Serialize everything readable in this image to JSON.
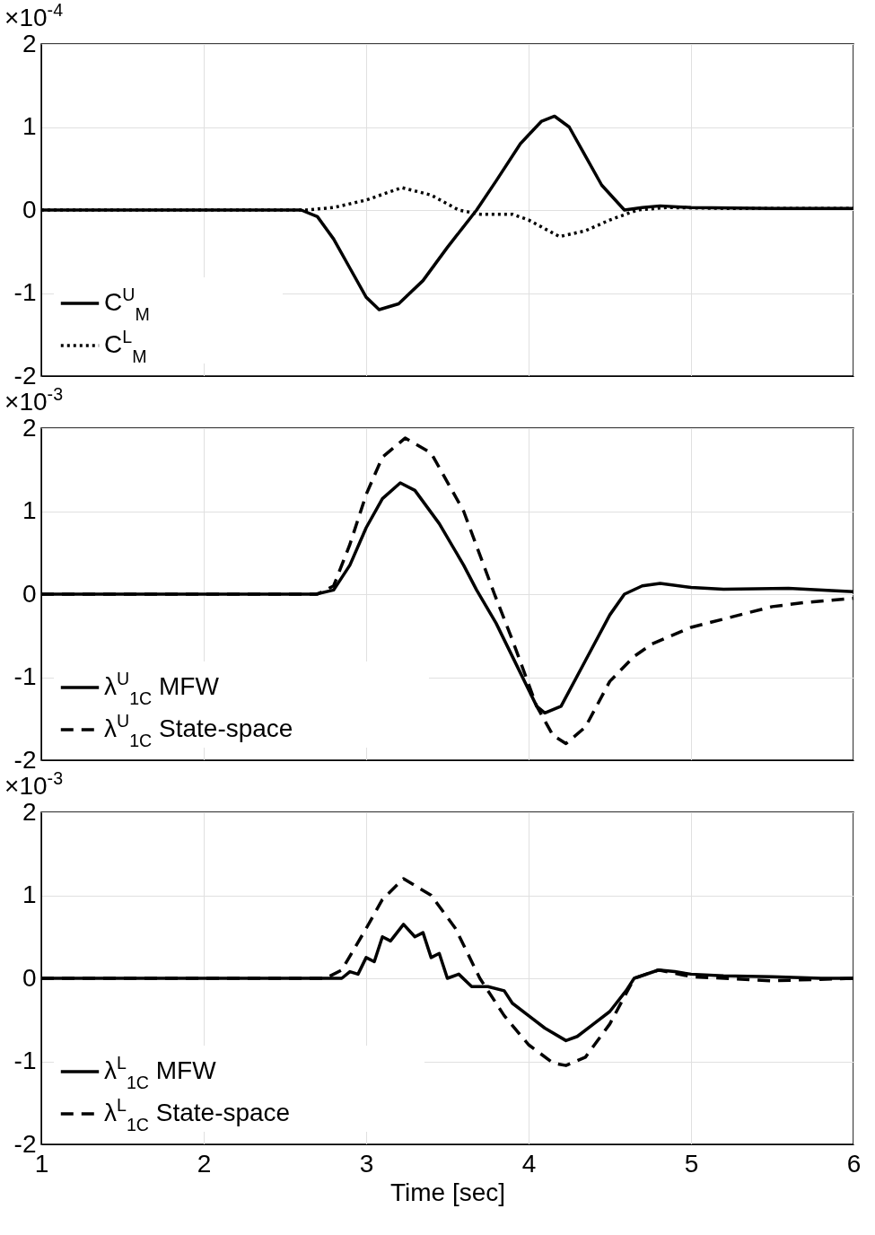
{
  "chart_data": [
    {
      "type": "line",
      "annotations": [
        "×10$^{-4}$"
      ],
      "xlim": [
        1,
        6
      ],
      "xticks": [
        1,
        2,
        3,
        4,
        5,
        6
      ],
      "ylim": [
        -2,
        2
      ],
      "yticks": [
        -2,
        -1,
        0,
        1,
        2
      ],
      "grid": true,
      "legend": "bottom left",
      "tick_labels": "y",
      "series": [
        {
          "name": "C$^{U}$$_{M}$",
          "color": "#000000",
          "line_style": "solid",
          "x": [
            1,
            2.6,
            2.7,
            2.8,
            2.9,
            3.0,
            3.08,
            3.2,
            3.35,
            3.5,
            3.68,
            3.8,
            3.95,
            4.08,
            4.16,
            4.25,
            4.35,
            4.45,
            4.59,
            4.7,
            4.81,
            5.0,
            5.5,
            6
          ],
          "values": [
            0,
            0,
            -0.08,
            -0.35,
            -0.7,
            -1.05,
            -1.2,
            -1.13,
            -0.85,
            -0.45,
            0,
            0.35,
            0.8,
            1.07,
            1.13,
            1.0,
            0.65,
            0.3,
            0,
            0.03,
            0.05,
            0.03,
            0.02,
            0.02
          ]
        },
        {
          "name": "C$^{L}$$_{M}$",
          "color": "#000000",
          "line_style": "dotted",
          "x": [
            1,
            2.63,
            2.8,
            3.0,
            3.22,
            3.4,
            3.57,
            3.7,
            3.9,
            4.0,
            4.19,
            4.35,
            4.5,
            4.67,
            4.85,
            5.2,
            6
          ],
          "values": [
            0,
            0,
            0.03,
            0.12,
            0.27,
            0.18,
            0,
            -0.05,
            -0.05,
            -0.12,
            -0.32,
            -0.25,
            -0.12,
            0,
            0.03,
            0.02,
            0.02
          ]
        }
      ]
    },
    {
      "type": "line",
      "annotations": [
        "×10$^{-3}$"
      ],
      "xlim": [
        1,
        6
      ],
      "xticks": [
        1,
        2,
        3,
        4,
        5,
        6
      ],
      "ylim": [
        -2,
        2
      ],
      "yticks": [
        -2,
        -1,
        0,
        1,
        2
      ],
      "grid": true,
      "legend": "bottom left",
      "tick_labels": "y",
      "series": [
        {
          "name": "λ$^{U}$$_{1C}$ MFW",
          "color": "#000000",
          "line_style": "solid",
          "x": [
            1,
            2.69,
            2.8,
            2.9,
            3.0,
            3.1,
            3.21,
            3.3,
            3.45,
            3.6,
            3.68,
            3.8,
            3.95,
            4.05,
            4.1,
            4.2,
            4.35,
            4.5,
            4.59,
            4.7,
            4.81,
            5.0,
            5.2,
            5.6,
            6
          ],
          "values": [
            0,
            0,
            0.05,
            0.35,
            0.8,
            1.15,
            1.34,
            1.25,
            0.85,
            0.35,
            0.05,
            -0.35,
            -0.95,
            -1.35,
            -1.43,
            -1.35,
            -0.8,
            -0.25,
            0,
            0.1,
            0.13,
            0.08,
            0.06,
            0.07,
            0.03
          ]
        },
        {
          "name": "λ$^{U}$$_{1C}$ State-space",
          "color": "#000000",
          "line_style": "dashed",
          "x": [
            1,
            2.7,
            2.8,
            2.9,
            3.0,
            3.1,
            3.24,
            3.4,
            3.6,
            3.79,
            3.9,
            4.05,
            4.15,
            4.23,
            4.35,
            4.5,
            4.65,
            4.76,
            5.0,
            5.2,
            5.5,
            5.7,
            6
          ],
          "values": [
            0,
            0,
            0.1,
            0.6,
            1.2,
            1.65,
            1.88,
            1.7,
            1.0,
            0,
            -0.55,
            -1.35,
            -1.7,
            -1.8,
            -1.6,
            -1.05,
            -0.75,
            -0.6,
            -0.4,
            -0.3,
            -0.15,
            -0.1,
            -0.05
          ]
        }
      ]
    },
    {
      "type": "line",
      "annotations": [
        "×10$^{-3}$"
      ],
      "xlabel": "Time [sec]",
      "xlim": [
        1,
        6
      ],
      "xticks": [
        1,
        2,
        3,
        4,
        5,
        6
      ],
      "ylim": [
        -2,
        2
      ],
      "yticks": [
        -2,
        -1,
        0,
        1,
        2
      ],
      "grid": true,
      "legend": "bottom left",
      "series": [
        {
          "name": "λ$^{L}$$_{1C}$ MFW",
          "color": "#000000",
          "line_style": "solid",
          "x": [
            1,
            2.85,
            2.9,
            2.95,
            3.0,
            3.05,
            3.1,
            3.15,
            3.23,
            3.3,
            3.35,
            3.4,
            3.45,
            3.5,
            3.57,
            3.65,
            3.75,
            3.85,
            3.9,
            4.0,
            4.1,
            4.23,
            4.3,
            4.4,
            4.5,
            4.6,
            4.65,
            4.8,
            4.9,
            5.0,
            5.2,
            5.5,
            5.8,
            6
          ],
          "values": [
            0,
            0,
            0.08,
            0.05,
            0.25,
            0.2,
            0.5,
            0.45,
            0.65,
            0.5,
            0.55,
            0.25,
            0.3,
            0,
            0.05,
            -0.1,
            -0.1,
            -0.15,
            -0.3,
            -0.45,
            -0.6,
            -0.75,
            -0.7,
            -0.55,
            -0.4,
            -0.15,
            0,
            0.1,
            0.08,
            0.05,
            0.03,
            0.02,
            0,
            0
          ]
        },
        {
          "name": "λ$^{L}$$_{1C}$ State-space",
          "color": "#000000",
          "line_style": "dashed",
          "x": [
            1,
            2.75,
            2.85,
            3.0,
            3.1,
            3.23,
            3.4,
            3.55,
            3.7,
            3.85,
            4.0,
            4.15,
            4.23,
            4.35,
            4.5,
            4.65,
            4.8,
            5.0,
            5.5,
            6
          ],
          "values": [
            0,
            0,
            0.1,
            0.6,
            0.95,
            1.2,
            1.0,
            0.6,
            0,
            -0.45,
            -0.8,
            -1.02,
            -1.05,
            -0.95,
            -0.55,
            0,
            0.1,
            0.02,
            -0.03,
            0
          ]
        }
      ]
    }
  ]
}
